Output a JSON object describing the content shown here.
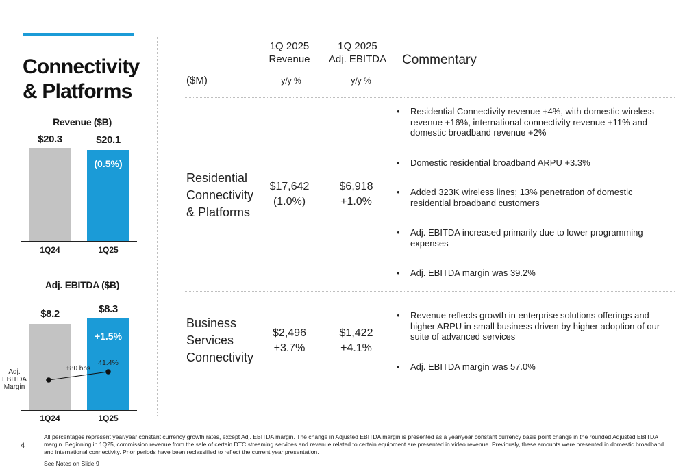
{
  "section_title": [
    "Connectivity",
    "& Platforms"
  ],
  "revenue_chart": {
    "title": "Revenue ($B)",
    "categories": [
      "1Q24",
      "1Q25"
    ],
    "value_labels": [
      "$20.3",
      "$20.1"
    ],
    "change_label": "(0.5%)"
  },
  "ebitda_chart": {
    "title": "Adj. EBITDA ($B)",
    "categories": [
      "1Q24",
      "1Q25"
    ],
    "value_labels": [
      "$8.2",
      "$8.3"
    ],
    "change_label": "+1.5%",
    "margin_label": [
      "Adj.",
      "EBITDA",
      "Margin"
    ],
    "margin_change": "+80 bps",
    "margin_value": "41.4%"
  },
  "chart_data": [
    {
      "type": "bar",
      "title": "Revenue ($B)",
      "categories": [
        "1Q24",
        "1Q25"
      ],
      "values": [
        20.3,
        20.1
      ],
      "ylim": [
        0,
        20.3
      ],
      "colors": [
        "#c3c3c3",
        "#1b9bd7"
      ]
    },
    {
      "type": "bar",
      "title": "Adj. EBITDA ($B)",
      "categories": [
        "1Q24",
        "1Q25"
      ],
      "values": [
        8.2,
        8.3
      ],
      "ylim": [
        0,
        8.3
      ],
      "colors": [
        "#c3c3c3",
        "#1b9bd7"
      ],
      "margin_series": {
        "name": "Adj. EBITDA Margin",
        "values": [
          40.6,
          41.4
        ]
      }
    }
  ],
  "table": {
    "unit_label": "($M)",
    "col_revenue": [
      "1Q 2025",
      "Revenue"
    ],
    "col_ebitda": [
      "1Q 2025",
      "Adj. EBITDA"
    ],
    "col_commentary": "Commentary",
    "yy_label": "y/y %",
    "rows": [
      {
        "segment": [
          "Residential",
          "Connectivity",
          "& Platforms"
        ],
        "revenue": "$17,642",
        "revenue_change": "(1.0%)",
        "ebitda": "$6,918",
        "ebitda_change": "+1.0%",
        "bullets": [
          "Residential Connectivity revenue +4%, with domestic wireless revenue +16%, international connectivity revenue +11% and domestic broadband revenue +2%",
          "Domestic residential broadband ARPU +3.3%",
          "Added 323K wireless lines; 13% penetration of domestic residential broadband customers",
          "Adj. EBITDA increased primarily due to lower programming expenses",
          "Adj. EBITDA margin was 39.2%"
        ]
      },
      {
        "segment": [
          "Business",
          "Services",
          "Connectivity"
        ],
        "revenue": "$2,496",
        "revenue_change": "+3.7%",
        "ebitda": "$1,422",
        "ebitda_change": "+4.1%",
        "bullets": [
          "Revenue reflects growth in enterprise solutions offerings and higher ARPU in small business driven by higher adoption of our suite of advanced services",
          "Adj. EBITDA margin was 57.0%"
        ]
      }
    ]
  },
  "page_number": "4",
  "footnote": "All percentages represent year/year constant currency growth rates, except Adj. EBITDA margin. The change in Adjusted EBITDA margin is presented as a year/year constant currency basis point change in the rounded Adjusted EBITDA margin. Beginning in 1Q25, commission revenue from the sale of certain DTC streaming services and revenue related to certain equipment are presented in video revenue. Previously, these amounts were presented in domestic broadband and international connectivity. Prior periods have been reclassified to reflect the current year presentation.",
  "see_notes": "See Notes on Slide 9",
  "colors": {
    "accent": "#1b9bd7",
    "bar_prior": "#c3c3c3"
  }
}
